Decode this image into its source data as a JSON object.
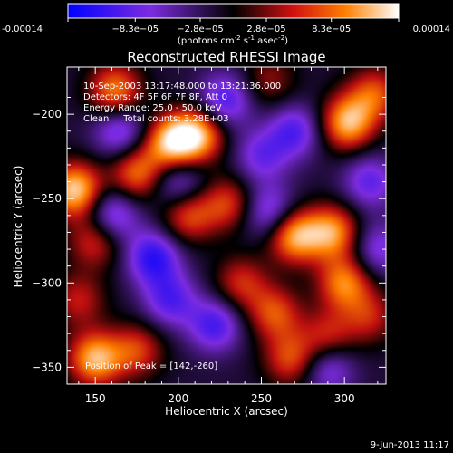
{
  "colorbar": {
    "tick_labels": [
      "-0.00014",
      "−8.3e−05",
      "−2.8e−05",
      "2.8e−05",
      "8.3e−05",
      "0.00014"
    ],
    "tick_values": [
      -0.00014,
      -8.3e-05,
      -2.8e-05,
      2.8e-05,
      8.3e-05,
      0.00014
    ],
    "range": [
      -0.00014,
      0.00014
    ],
    "unit_label": "(photons cm",
    "unit_exp1": "-2",
    "unit_mid": " s",
    "unit_exp2": "-1",
    "unit_end": " asec",
    "unit_exp3": "-2",
    "unit_close": ")"
  },
  "chart_data": {
    "type": "heatmap",
    "title": "Reconstructed RHESSI Image",
    "xlabel": "Heliocentric X (arcsec)",
    "ylabel": "Heliocentric Y (arcsec)",
    "xlim": [
      133,
      325
    ],
    "ylim": [
      -360,
      -172
    ],
    "x_ticks": [
      150,
      200,
      250,
      300
    ],
    "x_tick_labels": [
      "150",
      "200",
      "250",
      "300"
    ],
    "y_ticks": [
      -200,
      -250,
      -300,
      -350
    ],
    "y_tick_labels": [
      "−200",
      "−250",
      "−300",
      "−350"
    ],
    "value_range": [
      -0.00014,
      0.00014
    ],
    "colormap": [
      "#0000ff",
      "#7c2ce0",
      "#000000",
      "#d01010",
      "#ff8000",
      "#ffffff"
    ],
    "blobs": [
      {
        "x": 138,
        "y": -245,
        "v": 1.0
      },
      {
        "x": 162,
        "y": -186,
        "v": 0.75
      },
      {
        "x": 175,
        "y": -235,
        "v": 0.7
      },
      {
        "x": 196,
        "y": -217,
        "v": 0.95
      },
      {
        "x": 212,
        "y": -212,
        "v": 0.85
      },
      {
        "x": 206,
        "y": -260,
        "v": 0.6
      },
      {
        "x": 230,
        "y": -253,
        "v": 0.55
      },
      {
        "x": 150,
        "y": -275,
        "v": 0.55
      },
      {
        "x": 238,
        "y": -300,
        "v": 0.5
      },
      {
        "x": 258,
        "y": -318,
        "v": 0.6
      },
      {
        "x": 270,
        "y": -272,
        "v": 0.9
      },
      {
        "x": 293,
        "y": -270,
        "v": 0.8
      },
      {
        "x": 302,
        "y": -205,
        "v": 0.9
      },
      {
        "x": 318,
        "y": -188,
        "v": 0.6
      },
      {
        "x": 300,
        "y": -300,
        "v": 0.75
      },
      {
        "x": 315,
        "y": -320,
        "v": 0.45
      },
      {
        "x": 150,
        "y": -345,
        "v": 0.9
      },
      {
        "x": 175,
        "y": -340,
        "v": 0.55
      },
      {
        "x": 268,
        "y": -345,
        "v": 0.6
      },
      {
        "x": 290,
        "y": -332,
        "v": 0.5
      },
      {
        "x": 140,
        "y": -310,
        "v": 0.45
      },
      {
        "x": 255,
        "y": -180,
        "v": 0.35
      },
      {
        "x": 165,
        "y": -210,
        "v": -0.55
      },
      {
        "x": 228,
        "y": -192,
        "v": -0.6
      },
      {
        "x": 270,
        "y": -210,
        "v": -0.55
      },
      {
        "x": 250,
        "y": -225,
        "v": -0.45
      },
      {
        "x": 200,
        "y": -240,
        "v": -0.5
      },
      {
        "x": 160,
        "y": -260,
        "v": -0.6
      },
      {
        "x": 255,
        "y": -258,
        "v": -0.55
      },
      {
        "x": 315,
        "y": -240,
        "v": -0.5
      },
      {
        "x": 185,
        "y": -285,
        "v": -0.7
      },
      {
        "x": 222,
        "y": -325,
        "v": -0.6
      },
      {
        "x": 195,
        "y": -310,
        "v": -0.55
      },
      {
        "x": 290,
        "y": -350,
        "v": -0.5
      },
      {
        "x": 320,
        "y": -280,
        "v": -0.45
      }
    ]
  },
  "annotations": {
    "time_range": "10-Sep-2003 13:17:48.000 to 13:21:36.000",
    "detectors": "Detectors: 4F 5F 6F 7F 8F, Att 0",
    "energy": "Energy Range: 25.0 - 50.0 keV",
    "clean": "Clean     Total counts: 3.28E+03",
    "peak": "Position of Peak = [142,-260]"
  },
  "footer_date": "9-Jun-2013 11:17"
}
